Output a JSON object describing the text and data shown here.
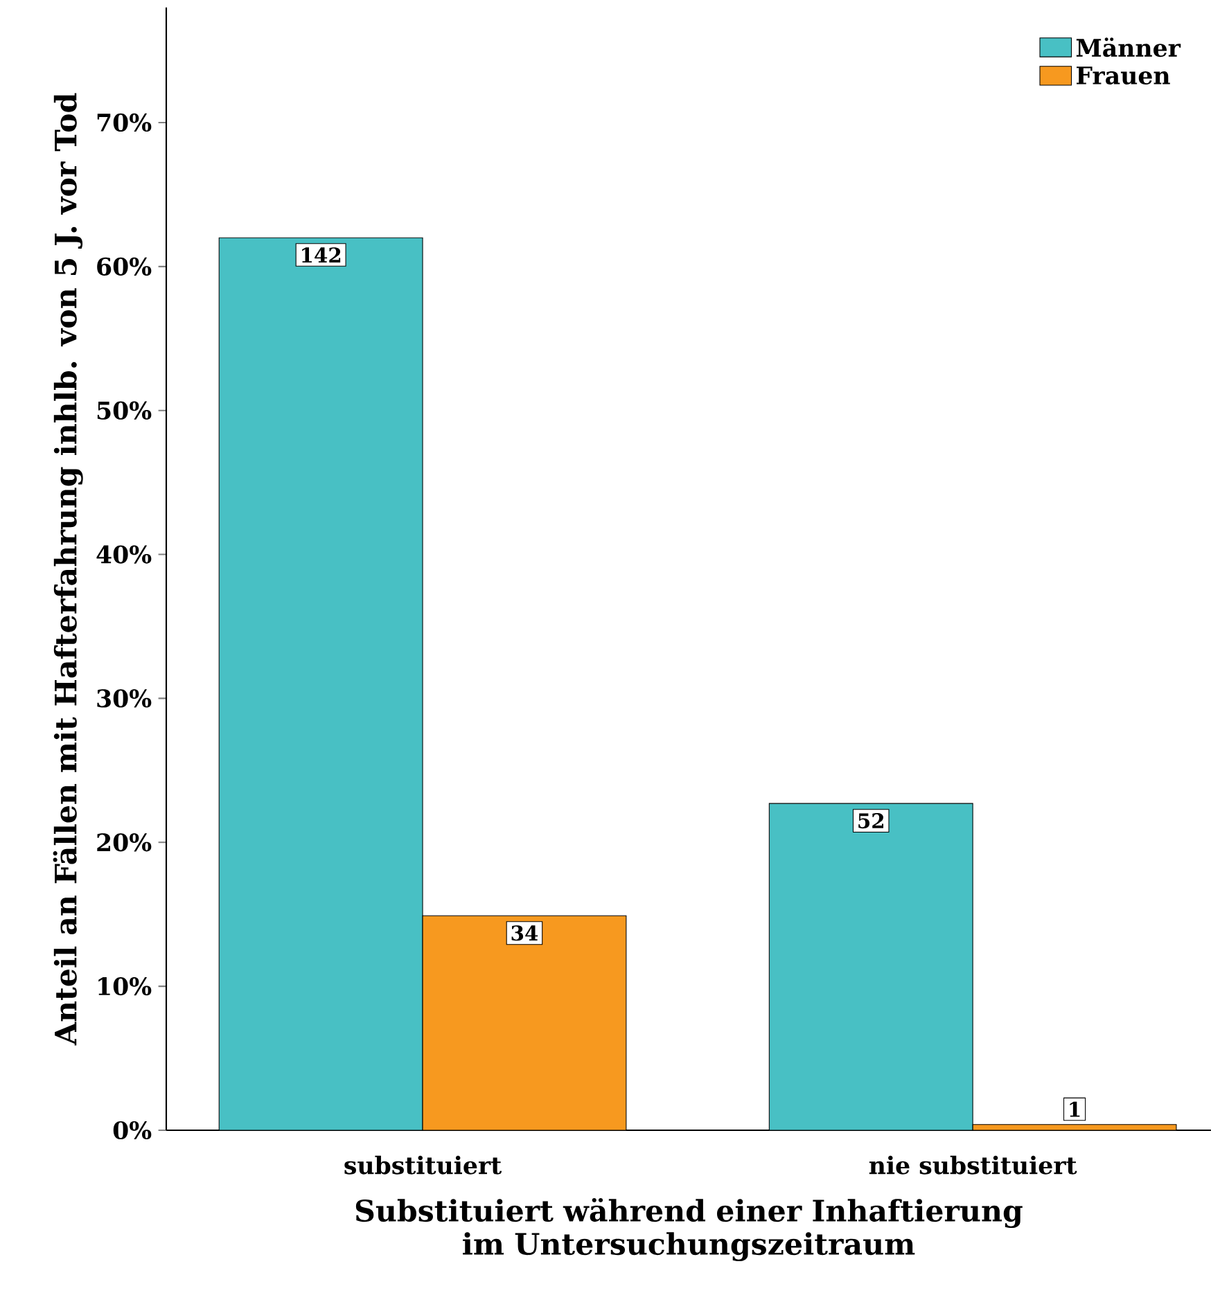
{
  "chart_data": {
    "type": "bar",
    "categories": [
      "substituiert",
      "nie substituiert"
    ],
    "series": [
      {
        "name": "Männer",
        "color": "#48c0c4",
        "values": [
          62,
          22.7
        ]
      },
      {
        "name": "Frauen",
        "color": "#f7991f",
        "values": [
          14.9,
          0.4
        ]
      }
    ],
    "annotations": [
      "142",
      "52",
      "34",
      "1"
    ],
    "xlabel": "Substituiert während einer Inhaftierung im Untersuchungszeitraum",
    "ylabel": "Anteil an Fällen mit Hafterfahrung inhlb. von 5 J. vor Tod",
    "ylim": [
      0,
      78
    ],
    "yticks": [
      {
        "value": 0,
        "label": "0%"
      },
      {
        "value": 10,
        "label": "10%"
      },
      {
        "value": 20,
        "label": "20%"
      },
      {
        "value": 30,
        "label": "30%"
      },
      {
        "value": 40,
        "label": "40%"
      },
      {
        "value": 50,
        "label": "50%"
      },
      {
        "value": 60,
        "label": "60%"
      },
      {
        "value": 70,
        "label": "70%"
      }
    ],
    "legend": "top right",
    "grid": false
  }
}
